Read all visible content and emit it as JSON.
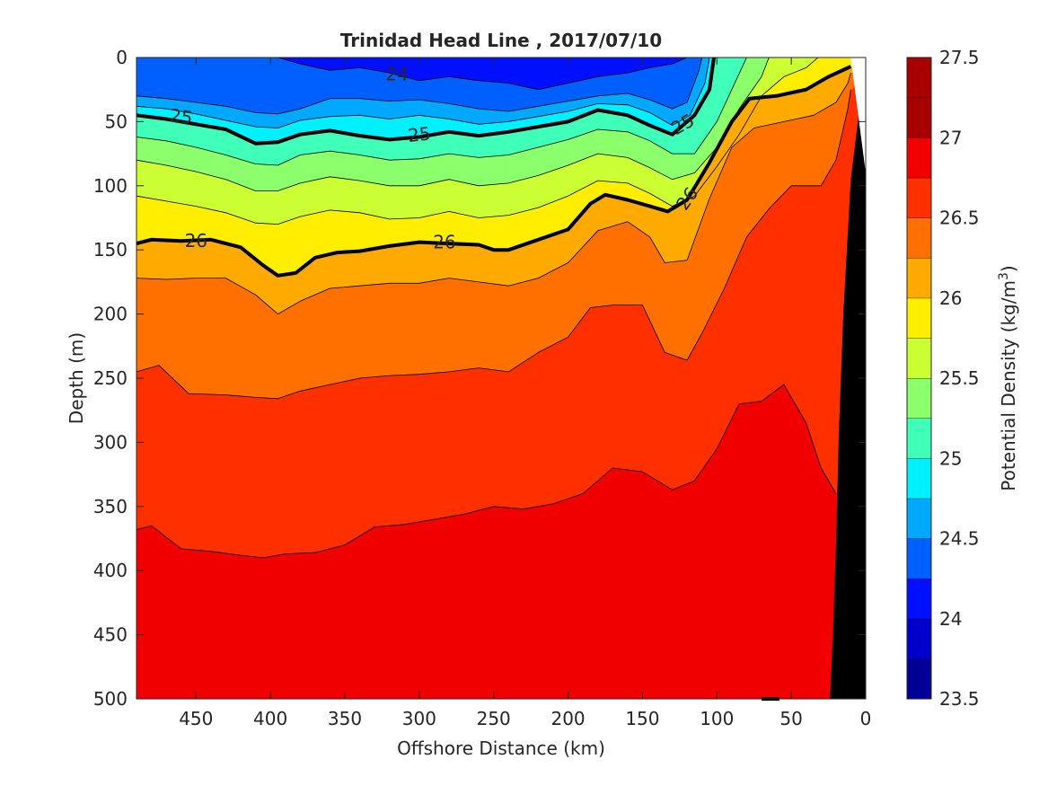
{
  "chart_data": {
    "type": "heatmap",
    "title": "Trinidad Head Line , 2017/07/10",
    "xlabel": "Offshore Distance (km)",
    "ylabel": "Depth (m)",
    "xlim": [
      490,
      0
    ],
    "ylim": [
      0,
      500
    ],
    "x_reversed": true,
    "y_reversed": true,
    "x_ticks": [
      "450",
      "400",
      "350",
      "300",
      "250",
      "200",
      "150",
      "100",
      "50",
      "0"
    ],
    "y_ticks": [
      "0",
      "50",
      "100",
      "150",
      "200",
      "250",
      "300",
      "350",
      "400",
      "450",
      "500"
    ],
    "colorbar": {
      "label": "Potential Density (kg/m3)",
      "label_main": "Potential Density (kg/m",
      "label_sup": "3",
      "label_end": ")",
      "clim": [
        23.5,
        27.5
      ],
      "tick_labels": [
        "27.5",
        "27",
        "26.5",
        "26",
        "25.5",
        "25",
        "24.5",
        "24",
        "23.5"
      ],
      "colors": [
        "#000096",
        "#0000cc",
        "#0010ff",
        "#0060ff",
        "#00a8ff",
        "#00f0ff",
        "#40ffb8",
        "#8cff6c",
        "#ccff33",
        "#ffee00",
        "#ffaa00",
        "#ff7000",
        "#ff3000",
        "#f00000",
        "#a80000"
      ]
    },
    "contour_labels": [
      "24",
      "25",
      "25",
      "25",
      "26",
      "26",
      "26"
    ],
    "depth_isopycnals": [
      {
        "sigma": 24.25,
        "points": [
          [
            490,
            0
          ],
          [
            395,
            0
          ],
          [
            380,
            5
          ],
          [
            360,
            10
          ],
          [
            340,
            8
          ],
          [
            320,
            12
          ],
          [
            300,
            18
          ],
          [
            280,
            15
          ],
          [
            260,
            18
          ],
          [
            240,
            20
          ],
          [
            220,
            25
          ],
          [
            200,
            20
          ],
          [
            180,
            15
          ],
          [
            160,
            12
          ],
          [
            145,
            8
          ],
          [
            130,
            5
          ],
          [
            120,
            0
          ]
        ]
      },
      {
        "sigma": 24.5,
        "points": [
          [
            490,
            30
          ],
          [
            470,
            32
          ],
          [
            450,
            35
          ],
          [
            430,
            38
          ],
          [
            410,
            43
          ],
          [
            395,
            44
          ],
          [
            380,
            40
          ],
          [
            360,
            32
          ],
          [
            340,
            32
          ],
          [
            320,
            34
          ],
          [
            300,
            33
          ],
          [
            280,
            36
          ],
          [
            260,
            40
          ],
          [
            240,
            42
          ],
          [
            220,
            38
          ],
          [
            200,
            34
          ],
          [
            180,
            30
          ],
          [
            160,
            28
          ],
          [
            145,
            33
          ],
          [
            130,
            40
          ],
          [
            120,
            35
          ],
          [
            112,
            10
          ],
          [
            110,
            0
          ]
        ]
      },
      {
        "sigma": 24.75,
        "points": [
          [
            490,
            38
          ],
          [
            470,
            40
          ],
          [
            450,
            44
          ],
          [
            430,
            49
          ],
          [
            410,
            54
          ],
          [
            395,
            55
          ],
          [
            380,
            49
          ],
          [
            360,
            46
          ],
          [
            340,
            45
          ],
          [
            320,
            48
          ],
          [
            300,
            45
          ],
          [
            280,
            48
          ],
          [
            260,
            52
          ],
          [
            240,
            50
          ],
          [
            220,
            46
          ],
          [
            200,
            42
          ],
          [
            180,
            36
          ],
          [
            160,
            37
          ],
          [
            145,
            43
          ],
          [
            130,
            53
          ],
          [
            118,
            45
          ],
          [
            108,
            20
          ],
          [
            105,
            0
          ]
        ]
      },
      {
        "sigma": 25.0,
        "points": [
          [
            490,
            45
          ],
          [
            470,
            48
          ],
          [
            450,
            52
          ],
          [
            430,
            56
          ],
          [
            410,
            67
          ],
          [
            395,
            66
          ],
          [
            380,
            60
          ],
          [
            360,
            57
          ],
          [
            340,
            61
          ],
          [
            320,
            64
          ],
          [
            300,
            62
          ],
          [
            280,
            58
          ],
          [
            260,
            61
          ],
          [
            240,
            58
          ],
          [
            220,
            54
          ],
          [
            200,
            50
          ],
          [
            180,
            41
          ],
          [
            160,
            45
          ],
          [
            145,
            53
          ],
          [
            130,
            60
          ],
          [
            115,
            45
          ],
          [
            105,
            25
          ],
          [
            102,
            0
          ]
        ]
      },
      {
        "sigma": 25.25,
        "points": [
          [
            490,
            62
          ],
          [
            470,
            65
          ],
          [
            450,
            70
          ],
          [
            430,
            76
          ],
          [
            410,
            83
          ],
          [
            395,
            84
          ],
          [
            380,
            76
          ],
          [
            360,
            73
          ],
          [
            340,
            76
          ],
          [
            320,
            80
          ],
          [
            300,
            79
          ],
          [
            280,
            75
          ],
          [
            260,
            78
          ],
          [
            240,
            76
          ],
          [
            220,
            70
          ],
          [
            200,
            64
          ],
          [
            180,
            56
          ],
          [
            160,
            58
          ],
          [
            145,
            65
          ],
          [
            130,
            75
          ],
          [
            115,
            75
          ],
          [
            100,
            50
          ],
          [
            88,
            20
          ],
          [
            80,
            0
          ]
        ]
      },
      {
        "sigma": 25.5,
        "points": [
          [
            490,
            80
          ],
          [
            470,
            84
          ],
          [
            450,
            89
          ],
          [
            430,
            95
          ],
          [
            410,
            104
          ],
          [
            395,
            104
          ],
          [
            380,
            98
          ],
          [
            360,
            93
          ],
          [
            340,
            96
          ],
          [
            320,
            100
          ],
          [
            300,
            100
          ],
          [
            280,
            95
          ],
          [
            260,
            100
          ],
          [
            240,
            98
          ],
          [
            220,
            92
          ],
          [
            200,
            84
          ],
          [
            180,
            75
          ],
          [
            160,
            78
          ],
          [
            145,
            86
          ],
          [
            130,
            95
          ],
          [
            115,
            90
          ],
          [
            100,
            70
          ],
          [
            85,
            40
          ],
          [
            70,
            15
          ],
          [
            65,
            0
          ]
        ]
      },
      {
        "sigma": 25.75,
        "points": [
          [
            490,
            108
          ],
          [
            470,
            112
          ],
          [
            450,
            116
          ],
          [
            430,
            121
          ],
          [
            410,
            129
          ],
          [
            395,
            130
          ],
          [
            380,
            124
          ],
          [
            360,
            119
          ],
          [
            340,
            121
          ],
          [
            320,
            126
          ],
          [
            300,
            125
          ],
          [
            280,
            120
          ],
          [
            260,
            125
          ],
          [
            240,
            123
          ],
          [
            220,
            117
          ],
          [
            200,
            108
          ],
          [
            180,
            96
          ],
          [
            160,
            98
          ],
          [
            145,
            106
          ],
          [
            130,
            116
          ],
          [
            115,
            108
          ],
          [
            100,
            85
          ],
          [
            85,
            60
          ],
          [
            70,
            30
          ],
          [
            55,
            15
          ],
          [
            40,
            8
          ],
          [
            32,
            0
          ]
        ]
      },
      {
        "sigma": 26.0,
        "points": [
          [
            490,
            145
          ],
          [
            480,
            142
          ],
          [
            460,
            143
          ],
          [
            440,
            142
          ],
          [
            420,
            148
          ],
          [
            405,
            162
          ],
          [
            395,
            170
          ],
          [
            383,
            168
          ],
          [
            370,
            156
          ],
          [
            355,
            152
          ],
          [
            340,
            151
          ],
          [
            320,
            147
          ],
          [
            300,
            144
          ],
          [
            280,
            145
          ],
          [
            260,
            146
          ],
          [
            250,
            150
          ],
          [
            240,
            150
          ],
          [
            220,
            142
          ],
          [
            200,
            134
          ],
          [
            185,
            114
          ],
          [
            175,
            107
          ],
          [
            160,
            111
          ],
          [
            145,
            116
          ],
          [
            133,
            120
          ],
          [
            120,
            111
          ],
          [
            105,
            82
          ],
          [
            90,
            50
          ],
          [
            78,
            32
          ],
          [
            60,
            30
          ],
          [
            40,
            25
          ],
          [
            25,
            15
          ],
          [
            10,
            7
          ]
        ]
      },
      {
        "sigma": 26.25,
        "points": [
          [
            490,
            172
          ],
          [
            470,
            173
          ],
          [
            450,
            172
          ],
          [
            430,
            172
          ],
          [
            410,
            185
          ],
          [
            395,
            200
          ],
          [
            380,
            190
          ],
          [
            360,
            180
          ],
          [
            340,
            178
          ],
          [
            320,
            176
          ],
          [
            300,
            176
          ],
          [
            280,
            172
          ],
          [
            260,
            175
          ],
          [
            240,
            178
          ],
          [
            220,
            172
          ],
          [
            200,
            160
          ],
          [
            180,
            135
          ],
          [
            160,
            128
          ],
          [
            145,
            140
          ],
          [
            135,
            160
          ],
          [
            120,
            158
          ],
          [
            105,
            110
          ],
          [
            90,
            70
          ],
          [
            75,
            55
          ],
          [
            55,
            50
          ],
          [
            35,
            45
          ],
          [
            20,
            35
          ],
          [
            12,
            20
          ],
          [
            10,
            12
          ]
        ]
      },
      {
        "sigma": 26.5,
        "points": [
          [
            490,
            245
          ],
          [
            475,
            240
          ],
          [
            455,
            262
          ],
          [
            430,
            263
          ],
          [
            410,
            265
          ],
          [
            395,
            266
          ],
          [
            380,
            260
          ],
          [
            360,
            255
          ],
          [
            340,
            250
          ],
          [
            320,
            248
          ],
          [
            300,
            247
          ],
          [
            280,
            245
          ],
          [
            260,
            242
          ],
          [
            240,
            245
          ],
          [
            220,
            230
          ],
          [
            200,
            218
          ],
          [
            185,
            195
          ],
          [
            170,
            193
          ],
          [
            150,
            193
          ],
          [
            135,
            230
          ],
          [
            120,
            236
          ],
          [
            110,
            215
          ],
          [
            95,
            180
          ],
          [
            80,
            140
          ],
          [
            65,
            118
          ],
          [
            50,
            100
          ],
          [
            30,
            100
          ],
          [
            20,
            80
          ],
          [
            12,
            40
          ],
          [
            10,
            25
          ]
        ]
      },
      {
        "sigma": 26.75,
        "points": [
          [
            490,
            368
          ],
          [
            480,
            365
          ],
          [
            460,
            383
          ],
          [
            440,
            385
          ],
          [
            420,
            388
          ],
          [
            405,
            390
          ],
          [
            390,
            387
          ],
          [
            370,
            386
          ],
          [
            350,
            380
          ],
          [
            330,
            366
          ],
          [
            310,
            364
          ],
          [
            290,
            360
          ],
          [
            270,
            356
          ],
          [
            250,
            350
          ],
          [
            230,
            352
          ],
          [
            210,
            348
          ],
          [
            190,
            340
          ],
          [
            170,
            320
          ],
          [
            150,
            323
          ],
          [
            130,
            337
          ],
          [
            115,
            330
          ],
          [
            100,
            305
          ],
          [
            85,
            270
          ],
          [
            70,
            268
          ],
          [
            55,
            255
          ],
          [
            40,
            285
          ],
          [
            30,
            320
          ],
          [
            20,
            340
          ]
        ]
      }
    ],
    "lower_boundary": [
      [
        490,
        500
      ],
      [
        25,
        500
      ],
      [
        22,
        420
      ],
      [
        20,
        350
      ]
    ],
    "heavy_isolines": [
      25.0,
      26.0
    ],
    "bathymetry_polygon": [
      [
        0,
        0
      ],
      [
        10,
        95
      ],
      [
        15,
        200
      ],
      [
        18,
        290
      ],
      [
        20,
        380
      ],
      [
        22,
        450
      ],
      [
        24,
        500
      ],
      [
        0,
        500
      ]
    ],
    "bottom_mark": [
      [
        70,
        500
      ],
      [
        58,
        500
      ]
    ]
  }
}
